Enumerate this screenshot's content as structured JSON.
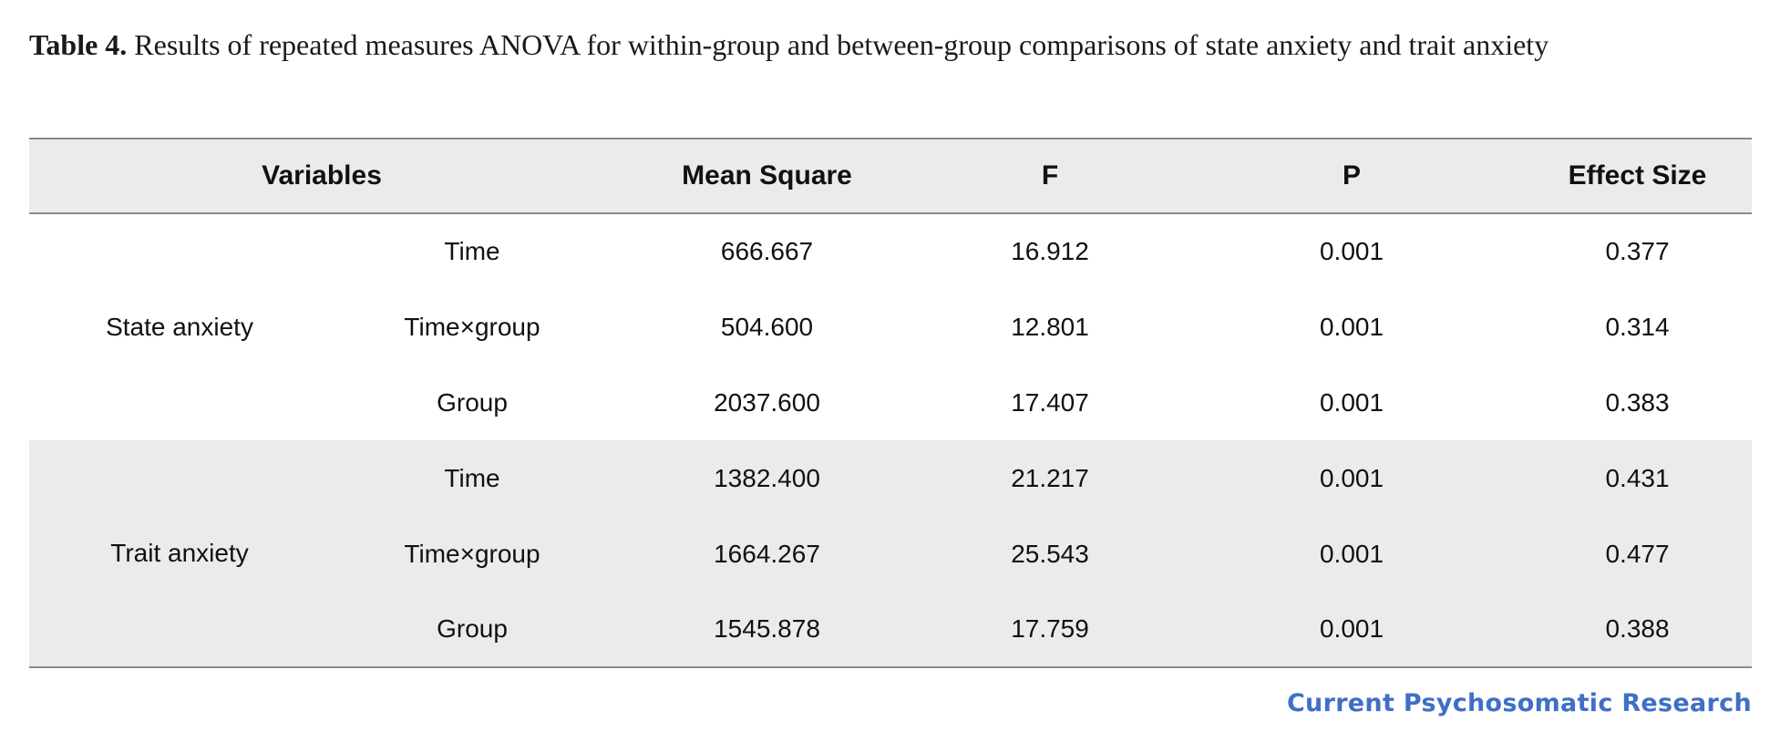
{
  "caption": {
    "label": "Table 4.",
    "text": " Results of repeated measures ANOVA for within-group and between-group comparisons of state anxiety and trait anxiety"
  },
  "table": {
    "headers": {
      "variables": "Variables",
      "mean_square": "Mean Square",
      "f": "F",
      "p": "P",
      "effect_size": "Effect Size"
    },
    "groups": [
      {
        "name": "State anxiety",
        "rows": [
          {
            "factor": "Time",
            "mean_square": "666.667",
            "f": "16.912",
            "p": "0.001",
            "effect_size": "0.377"
          },
          {
            "factor": "Time×group",
            "mean_square": "504.600",
            "f": "12.801",
            "p": "0.001",
            "effect_size": "0.314"
          },
          {
            "factor": "Group",
            "mean_square": "2037.600",
            "f": "17.407",
            "p": "0.001",
            "effect_size": "0.383"
          }
        ]
      },
      {
        "name": "Trait anxiety",
        "rows": [
          {
            "factor": "Time",
            "mean_square": "1382.400",
            "f": "21.217",
            "p": "0.001",
            "effect_size": "0.431"
          },
          {
            "factor": "Time×group",
            "mean_square": "1664.267",
            "f": "25.543",
            "p": "0.001",
            "effect_size": "0.477"
          },
          {
            "factor": "Group",
            "mean_square": "1545.878",
            "f": "17.759",
            "p": "0.001",
            "effect_size": "0.388"
          }
        ]
      }
    ]
  },
  "footer": {
    "journal": "Current Psychosomatic Research"
  },
  "colors": {
    "header_bg": "#ebebeb",
    "rule": "#8a8a8a",
    "journal_blue": "#3f6fc6"
  }
}
